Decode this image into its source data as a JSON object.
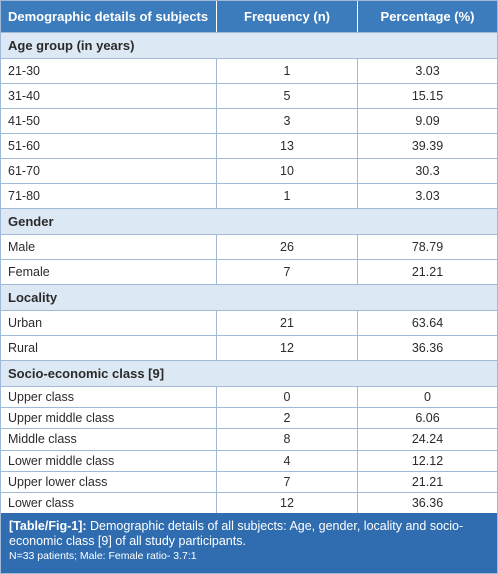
{
  "table": {
    "header": [
      "Demographic details of subjects",
      "Frequency (n)",
      "Percentage (%)"
    ],
    "sections": [
      {
        "title": "Age group (in years)",
        "rows": [
          [
            "21-30",
            "1",
            "3.03"
          ],
          [
            "31-40",
            "5",
            "15.15"
          ],
          [
            "41-50",
            "3",
            "9.09"
          ],
          [
            "51-60",
            "13",
            "39.39"
          ],
          [
            "61-70",
            "10",
            "30.3"
          ],
          [
            "71-80",
            "1",
            "3.03"
          ]
        ]
      },
      {
        "title": "Gender",
        "rows": [
          [
            "Male",
            "26",
            "78.79"
          ],
          [
            "Female",
            "7",
            "21.21"
          ]
        ]
      },
      {
        "title": "Locality",
        "rows": [
          [
            "Urban",
            "21",
            "63.64"
          ],
          [
            "Rural",
            "12",
            "36.36"
          ]
        ]
      },
      {
        "title": "Socio-economic class [9]",
        "rows": [
          [
            "Upper class",
            "0",
            "0"
          ],
          [
            "Upper middle class",
            "2",
            "6.06"
          ],
          [
            "Middle class",
            "8",
            "24.24"
          ],
          [
            "Lower middle class",
            "4",
            "12.12"
          ],
          [
            "Upper lower class",
            "7",
            "21.21"
          ],
          [
            "Lower class",
            "12",
            "36.36"
          ]
        ]
      }
    ]
  },
  "caption": {
    "label": "[Table/Fig-1]:",
    "text": "Demographic details of all subjects: Age, gender, locality and socio-economic class [9] of all study participants.",
    "note": "N=33 patients; Male: Female ratio- 3.7:1"
  }
}
